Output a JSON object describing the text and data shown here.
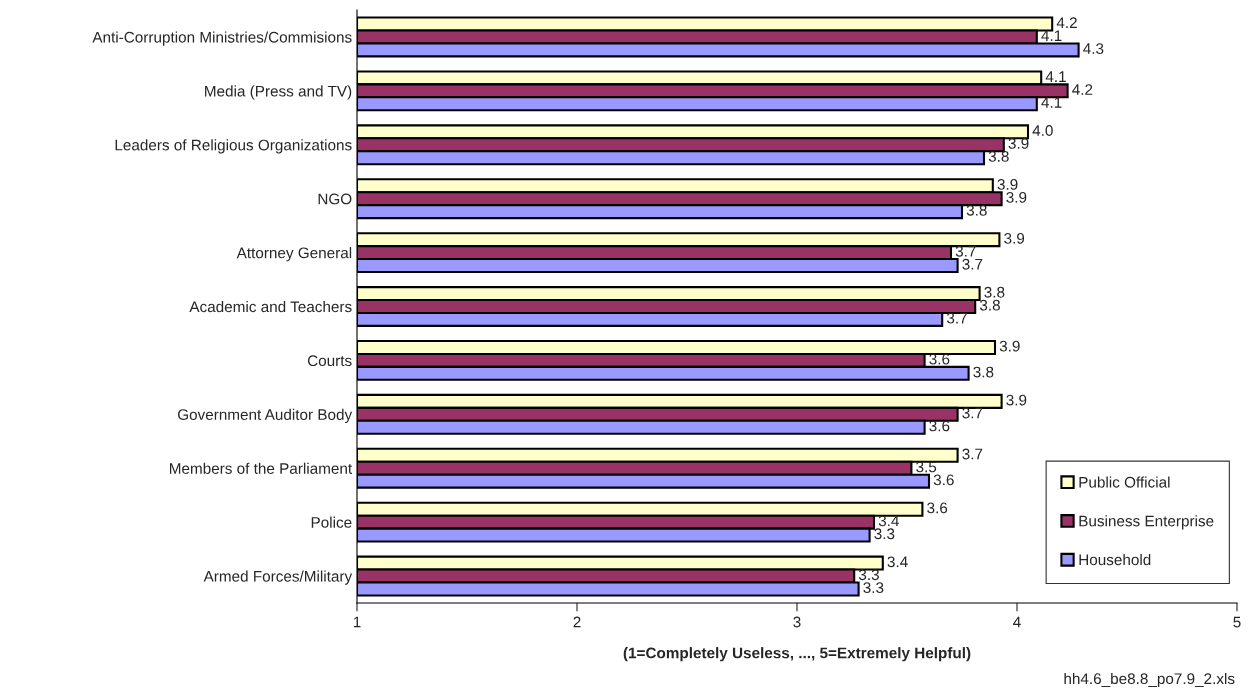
{
  "chart_data": {
    "type": "bar",
    "orientation": "horizontal",
    "xlabel": "(1=Completely Useless, ..., 5=Extremely Helpful)",
    "categories": [
      "Anti-Corruption Ministries/Commisions",
      "Media (Press and TV)",
      "Leaders of Religious Organizations",
      "NGO",
      "Attorney General",
      "Academic and Teachers",
      "Courts",
      "Government Auditor Body",
      "Members of the Parliament",
      "Police",
      "Armed Forces/Military"
    ],
    "series": [
      {
        "name": "Public Official",
        "color": "#ffffcc",
        "values": [
          4.16,
          4.11,
          4.05,
          3.89,
          3.92,
          3.83,
          3.9,
          3.93,
          3.73,
          3.57,
          3.39
        ],
        "value_labels": [
          "4.2",
          "4.1",
          "4.0",
          "3.9",
          "3.9",
          "3.8",
          "3.9",
          "3.9",
          "3.7",
          "3.6",
          "3.4"
        ]
      },
      {
        "name": "Business Enterprise",
        "color": "#993366",
        "values": [
          4.09,
          4.23,
          3.94,
          3.93,
          3.7,
          3.81,
          3.58,
          3.73,
          3.52,
          3.35,
          3.26
        ],
        "value_labels": [
          "4.1",
          "4.2",
          "3.9",
          "3.9",
          "3.7",
          "3.8",
          "3.6",
          "3.7",
          "3.5",
          "3.4",
          "3.3"
        ]
      },
      {
        "name": "Household",
        "color": "#9999ff",
        "values": [
          4.28,
          4.09,
          3.85,
          3.75,
          3.73,
          3.66,
          3.78,
          3.58,
          3.6,
          3.33,
          3.28
        ],
        "value_labels": [
          "4.3",
          "4.1",
          "3.8",
          "3.8",
          "3.7",
          "3.7",
          "3.8",
          "3.6",
          "3.6",
          "3.3",
          "3.3"
        ]
      }
    ],
    "xlim": [
      1,
      5
    ],
    "xticks": [
      1,
      2,
      3,
      4,
      5
    ],
    "grid": false,
    "legend": "bottom right",
    "annotations": [
      "hh4.6_be8.8_po7.9_2.xls"
    ]
  }
}
